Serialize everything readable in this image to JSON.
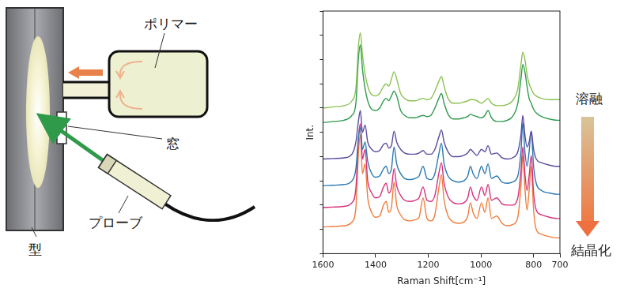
{
  "diagram": {
    "polymer": "ポリマー",
    "window": "窓",
    "mold": "型",
    "probe": "プローブ"
  },
  "chart_data": {
    "type": "line",
    "x_label": "Raman Shift[cm⁻¹]",
    "y_label": "Int.",
    "annotations": [
      "溶融",
      "結晶化"
    ],
    "xlim": [
      700,
      1600
    ],
    "xticks": [
      1600,
      1400,
      1200,
      1000,
      800,
      700
    ],
    "ylim": [
      0,
      10
    ],
    "yticks": [
      0,
      1,
      2,
      3,
      4,
      5,
      6,
      7,
      8,
      9,
      10
    ],
    "tick_labels": "x",
    "grid": false,
    "x": [
      1600,
      1560,
      1520,
      1490,
      1475,
      1465,
      1458,
      1450,
      1440,
      1430,
      1415,
      1400,
      1385,
      1370,
      1360,
      1350,
      1340,
      1330,
      1320,
      1305,
      1290,
      1270,
      1250,
      1235,
      1220,
      1205,
      1190,
      1175,
      1160,
      1150,
      1140,
      1125,
      1105,
      1085,
      1065,
      1050,
      1040,
      1030,
      1015,
      998,
      985,
      973,
      960,
      940,
      920,
      900,
      880,
      860,
      848,
      841,
      833,
      825,
      817,
      809,
      800,
      790,
      770,
      740,
      710,
      700
    ],
    "series": [
      {
        "color": "#8cc152",
        "values": [
          6.0,
          6.05,
          6.1,
          6.3,
          6.8,
          8.6,
          9.1,
          8.2,
          7.4,
          6.9,
          6.55,
          6.5,
          6.6,
          6.9,
          7.0,
          6.9,
          7.2,
          7.5,
          7.2,
          6.6,
          6.4,
          6.3,
          6.3,
          6.35,
          6.4,
          6.35,
          6.4,
          6.7,
          7.1,
          7.3,
          6.9,
          6.4,
          6.2,
          6.2,
          6.25,
          6.3,
          6.35,
          6.35,
          6.3,
          6.2,
          6.3,
          6.4,
          6.2,
          6.1,
          6.1,
          6.15,
          6.3,
          6.8,
          7.8,
          8.3,
          8.0,
          7.4,
          7.0,
          6.8,
          6.6,
          6.5,
          6.4,
          6.35,
          6.35,
          6.35
        ]
      },
      {
        "color": "#2e9a4e",
        "values": [
          5.4,
          5.45,
          5.5,
          5.7,
          6.2,
          8.1,
          8.6,
          7.6,
          6.8,
          6.3,
          5.95,
          5.9,
          6.0,
          6.3,
          6.4,
          6.3,
          6.5,
          6.7,
          6.5,
          5.9,
          5.7,
          5.6,
          5.6,
          5.65,
          5.7,
          5.65,
          5.7,
          6.0,
          6.4,
          6.6,
          6.2,
          5.75,
          5.55,
          5.55,
          5.6,
          5.65,
          5.75,
          5.7,
          5.65,
          5.6,
          5.7,
          5.9,
          5.6,
          5.45,
          5.45,
          5.5,
          5.65,
          6.2,
          7.2,
          7.8,
          7.5,
          6.9,
          6.4,
          6.2,
          5.95,
          5.8,
          5.65,
          5.55,
          5.5,
          5.5
        ]
      },
      {
        "color": "#5b4a9e",
        "values": [
          3.9,
          3.92,
          3.95,
          4.1,
          4.6,
          5.5,
          5.9,
          5.0,
          5.3,
          4.6,
          4.3,
          4.2,
          4.25,
          4.5,
          4.55,
          4.35,
          4.45,
          5.05,
          4.6,
          4.3,
          4.15,
          4.1,
          4.1,
          4.15,
          4.25,
          4.1,
          4.1,
          4.3,
          4.8,
          5.1,
          4.6,
          4.2,
          4.0,
          4.0,
          4.05,
          4.15,
          4.3,
          4.2,
          4.05,
          4.3,
          4.2,
          4.45,
          4.1,
          4.15,
          3.95,
          3.9,
          3.95,
          4.2,
          4.9,
          5.7,
          4.9,
          4.4,
          4.6,
          5.05,
          4.3,
          3.9,
          3.75,
          3.65,
          3.6,
          3.6
        ]
      },
      {
        "color": "#2b78b0",
        "values": [
          2.8,
          2.82,
          2.85,
          3.0,
          3.5,
          4.8,
          5.2,
          4.3,
          4.6,
          3.8,
          3.3,
          3.15,
          3.2,
          3.5,
          3.6,
          3.3,
          3.5,
          4.4,
          3.7,
          3.3,
          3.1,
          3.05,
          3.1,
          3.2,
          3.6,
          3.1,
          3.05,
          3.3,
          4.1,
          4.55,
          3.7,
          3.2,
          3.0,
          2.95,
          3.0,
          3.2,
          3.6,
          3.3,
          3.1,
          3.6,
          3.3,
          3.7,
          3.1,
          3.2,
          2.95,
          2.9,
          2.95,
          3.2,
          4.2,
          5.4,
          4.2,
          3.6,
          4.2,
          5.05,
          3.6,
          2.9,
          2.6,
          2.5,
          2.45,
          2.45
        ]
      },
      {
        "color": "#d6307c",
        "values": [
          1.9,
          1.92,
          1.95,
          2.1,
          2.7,
          4.8,
          5.35,
          3.9,
          4.3,
          3.0,
          2.5,
          2.3,
          2.35,
          2.75,
          2.9,
          2.5,
          2.7,
          3.5,
          2.8,
          2.4,
          2.2,
          2.15,
          2.2,
          2.3,
          2.75,
          2.2,
          2.15,
          2.4,
          3.3,
          3.75,
          2.9,
          2.35,
          2.1,
          2.05,
          2.1,
          2.3,
          2.75,
          2.4,
          2.2,
          2.75,
          2.4,
          2.85,
          2.2,
          2.3,
          2.05,
          2.0,
          2.0,
          2.3,
          3.4,
          4.4,
          3.3,
          2.6,
          3.2,
          4.05,
          2.5,
          1.8,
          1.6,
          1.5,
          1.45,
          1.45
        ]
      },
      {
        "color": "#f07d3c",
        "values": [
          1.1,
          1.12,
          1.15,
          1.3,
          1.9,
          4.2,
          4.9,
          3.3,
          3.7,
          2.3,
          1.7,
          1.5,
          1.55,
          2.0,
          2.15,
          1.7,
          1.9,
          2.95,
          2.0,
          1.6,
          1.4,
          1.35,
          1.4,
          1.5,
          2.3,
          1.45,
          1.35,
          1.6,
          2.7,
          3.25,
          2.2,
          1.55,
          1.3,
          1.25,
          1.3,
          1.55,
          2.1,
          1.7,
          1.45,
          2.1,
          1.7,
          2.3,
          1.45,
          1.55,
          1.25,
          1.15,
          1.2,
          1.5,
          2.8,
          4.05,
          2.7,
          1.8,
          2.6,
          3.6,
          1.8,
          1.0,
          0.8,
          0.7,
          0.65,
          0.65
        ]
      }
    ]
  }
}
